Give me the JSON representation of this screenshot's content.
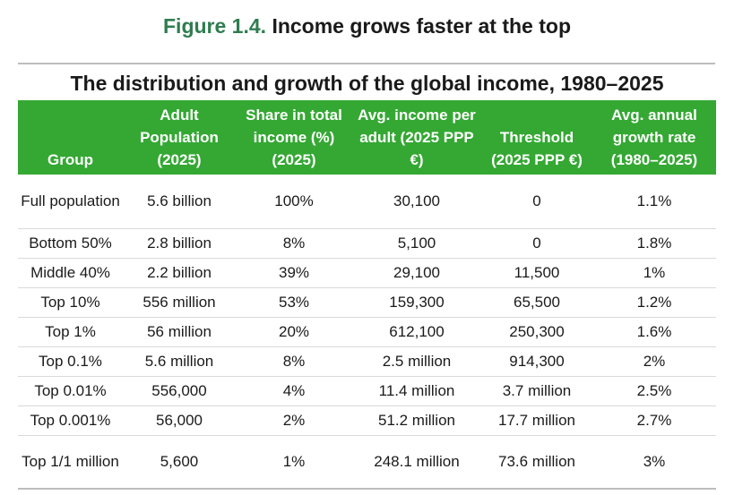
{
  "figure": {
    "label": "Figure 1.4.",
    "text": "Income grows faster at the top"
  },
  "table_title": "The distribution and growth of the global income, 1980–2025",
  "header_color": "#34a833",
  "columns": [
    "Group",
    "Adult Population (2025)",
    "Share in total income (%) (2025)",
    "Avg. income per adult (2025 PPP €)",
    "Threshold (2025 PPP €)",
    "Avg. annual growth rate (1980–2025)"
  ],
  "rows": [
    [
      "Full population",
      "5.6 billion",
      "100%",
      "30,100",
      "0",
      "1.1%"
    ],
    [
      "Bottom 50%",
      "2.8 billion",
      "8%",
      "5,100",
      "0",
      "1.8%"
    ],
    [
      "Middle 40%",
      "2.2 billion",
      "39%",
      "29,100",
      "11,500",
      "1%"
    ],
    [
      "Top 10%",
      "556 million",
      "53%",
      "159,300",
      "65,500",
      "1.2%"
    ],
    [
      "Top 1%",
      "56 million",
      "20%",
      "612,100",
      "250,300",
      "1.6%"
    ],
    [
      "Top 0.1%",
      "5.6 million",
      "8%",
      "2.5 million",
      "914,300",
      "2%"
    ],
    [
      "Top 0.01%",
      "556,000",
      "4%",
      "11.4 million",
      "3.7 million",
      "2.5%"
    ],
    [
      "Top 0.001%",
      "56,000",
      "2%",
      "51.2 million",
      "17.7 million",
      "2.7%"
    ],
    [
      "Top 1/1 million",
      "5,600",
      "1%",
      "248.1 million",
      "73.6 million",
      "3%"
    ]
  ]
}
